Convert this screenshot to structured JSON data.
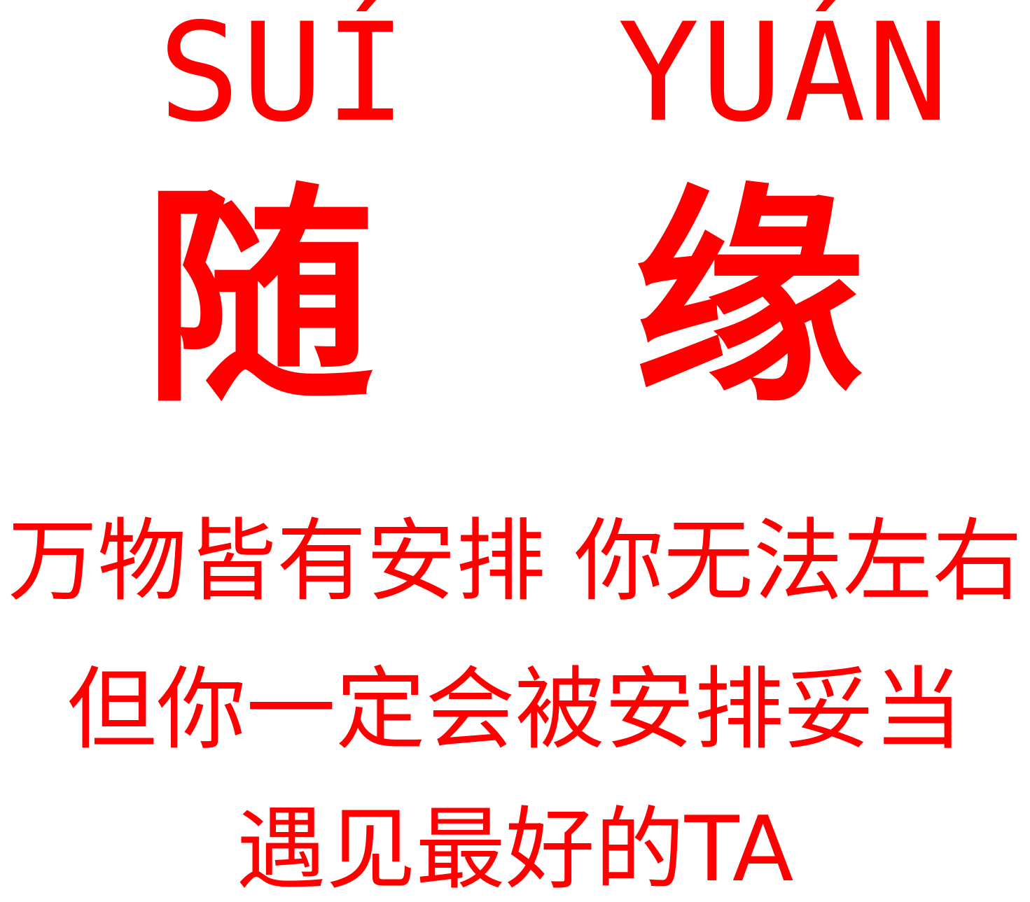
{
  "pinyin": {
    "left": "SUÍ",
    "right": "YUÁN"
  },
  "characters": {
    "left": "随",
    "right": "缘"
  },
  "lines": [
    "万物皆有安排 你无法左右",
    "但你一定会被安排妥当",
    "遇见最好的TA"
  ],
  "colors": {
    "text": "#ff0000",
    "background": "#ffffff"
  }
}
